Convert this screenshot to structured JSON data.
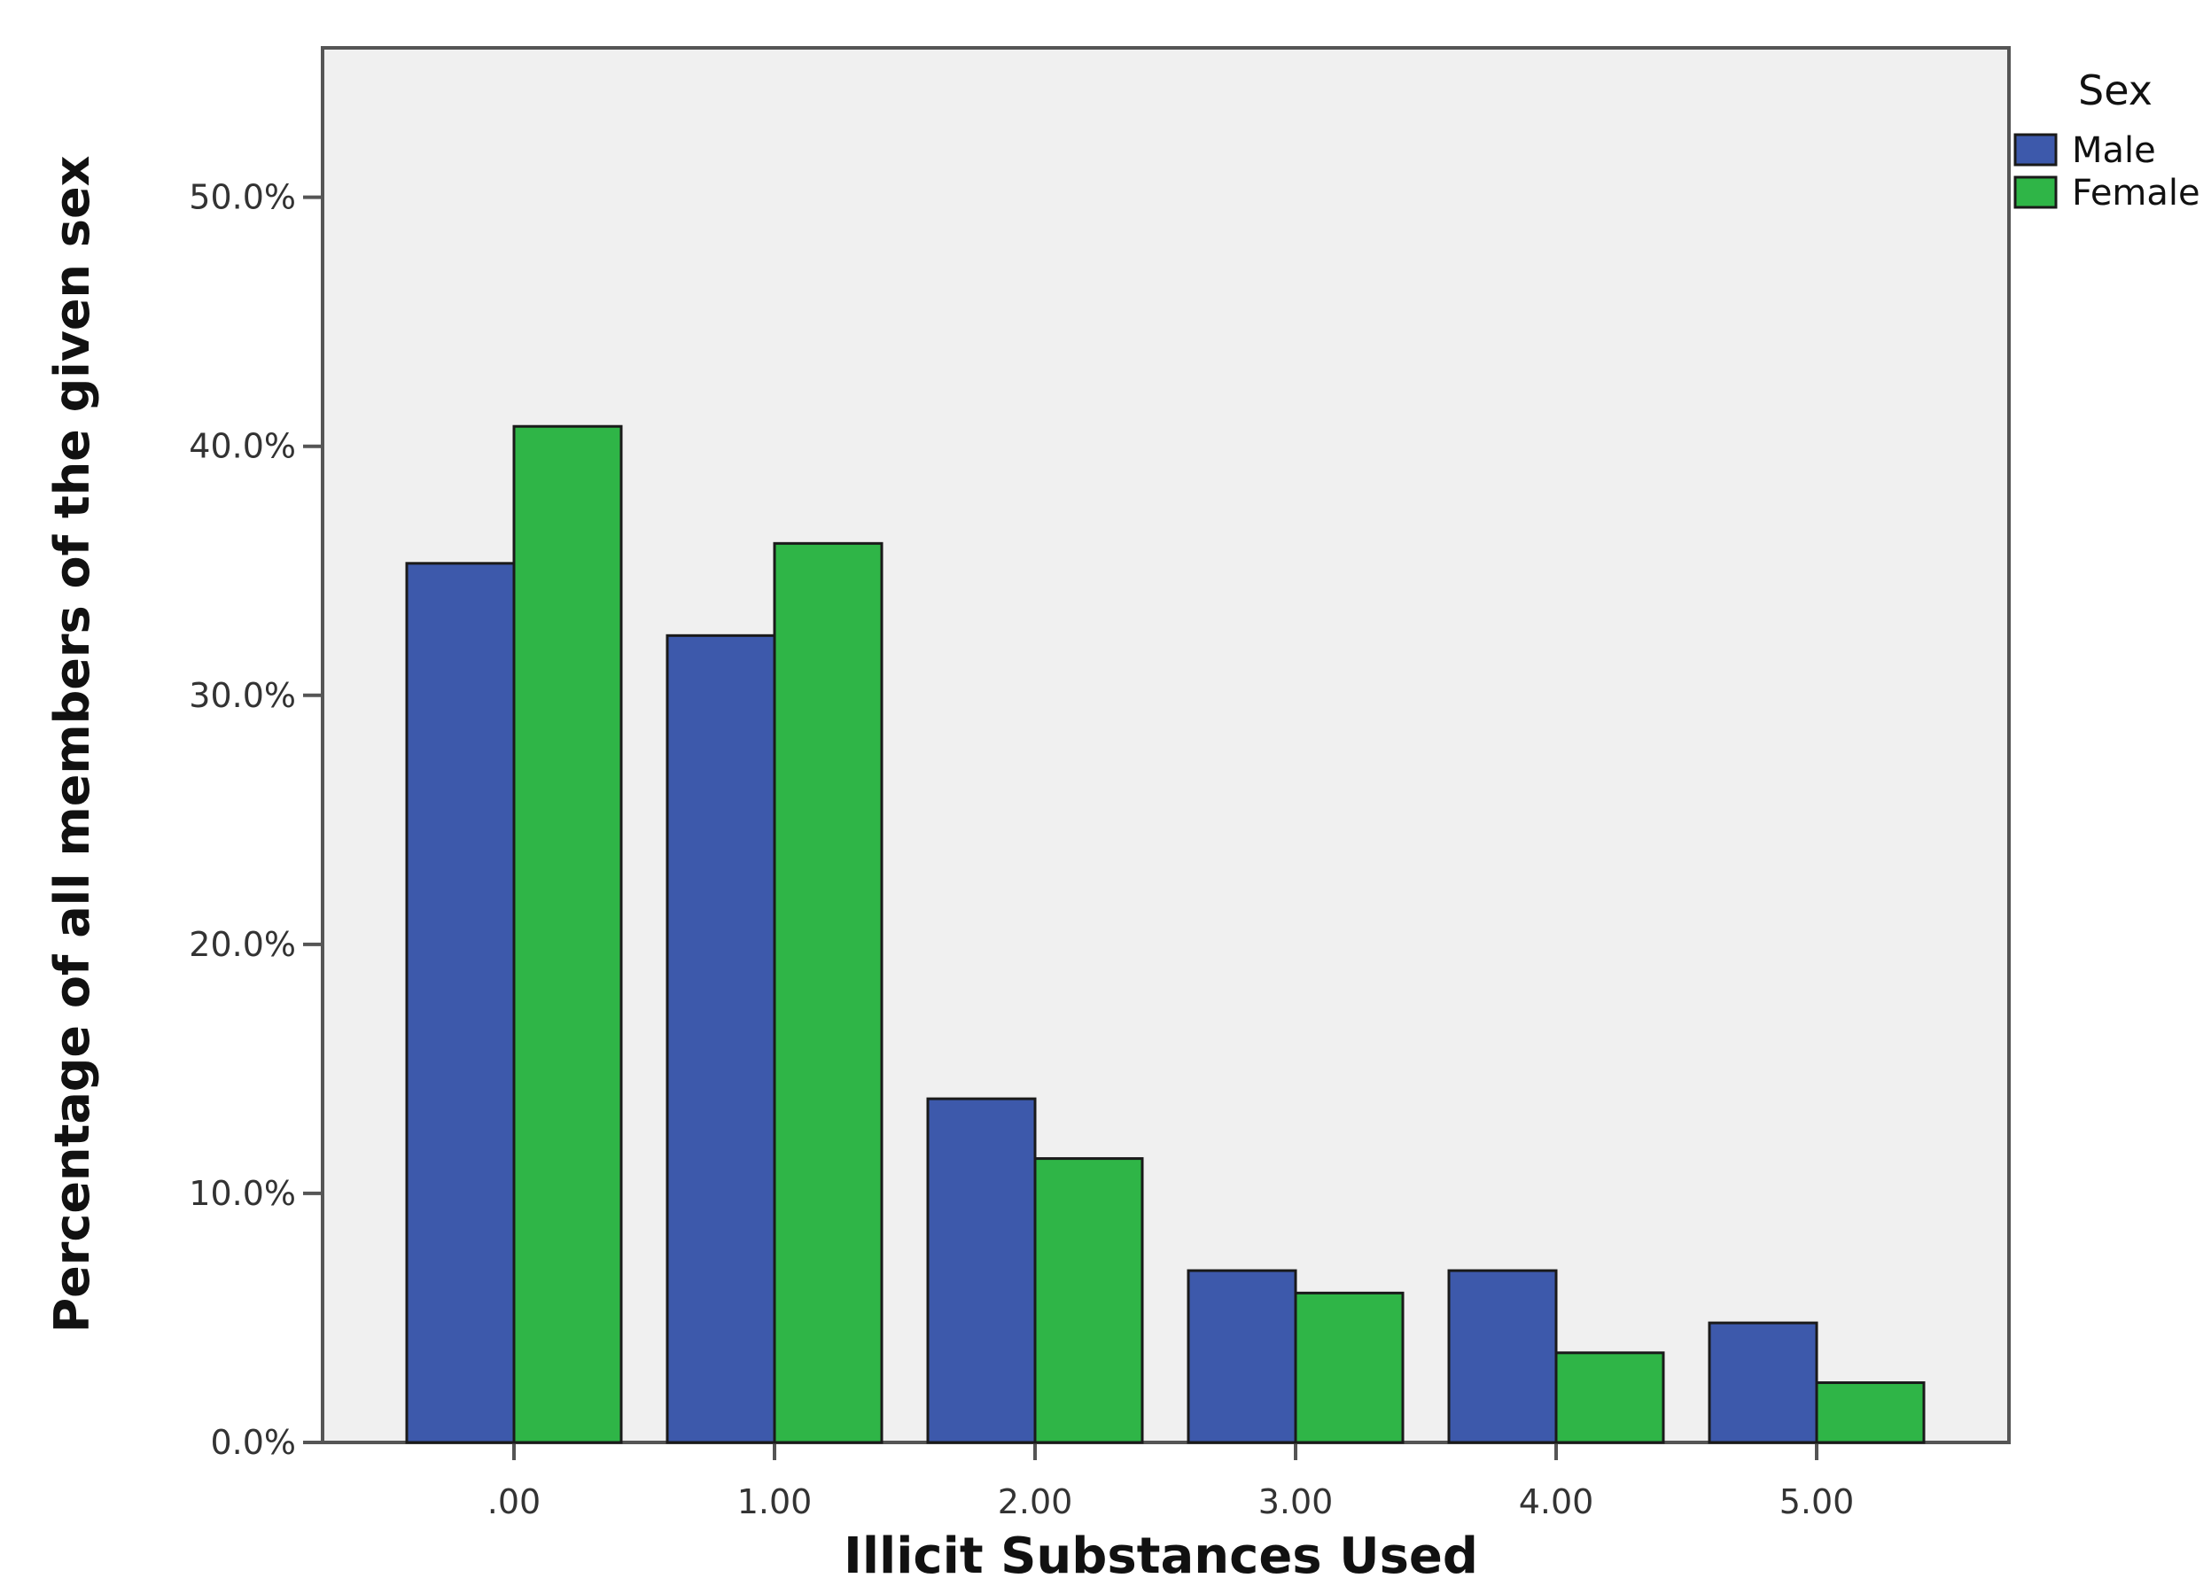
{
  "chart_data": {
    "type": "bar",
    "xlabel": "Illicit Substances Used",
    "ylabel": "Percentage of all members of the given sex",
    "categories": [
      ".00",
      "1.00",
      "2.00",
      "3.00",
      "4.00",
      "5.00"
    ],
    "series": [
      {
        "name": "Male",
        "values": [
          35.3,
          32.4,
          13.8,
          6.9,
          6.9,
          4.8
        ]
      },
      {
        "name": "Female",
        "values": [
          40.8,
          36.1,
          11.4,
          6.0,
          3.6,
          2.4
        ]
      }
    ],
    "ylim": [
      0,
      50
    ],
    "ymax_display": 56,
    "yticks": [
      0,
      10,
      20,
      30,
      40,
      50
    ],
    "ytick_labels": [
      "0.0%",
      "10.0%",
      "20.0%",
      "30.0%",
      "40.0%",
      "50.0%"
    ],
    "legend": {
      "title": "Sex",
      "position": "top-right outside"
    },
    "grid": false,
    "colors": {
      "Male": "#3d59ab",
      "Female": "#2fb547",
      "plot_background": "#f0f0f0",
      "bar_outline": "#1a1a1a"
    }
  }
}
